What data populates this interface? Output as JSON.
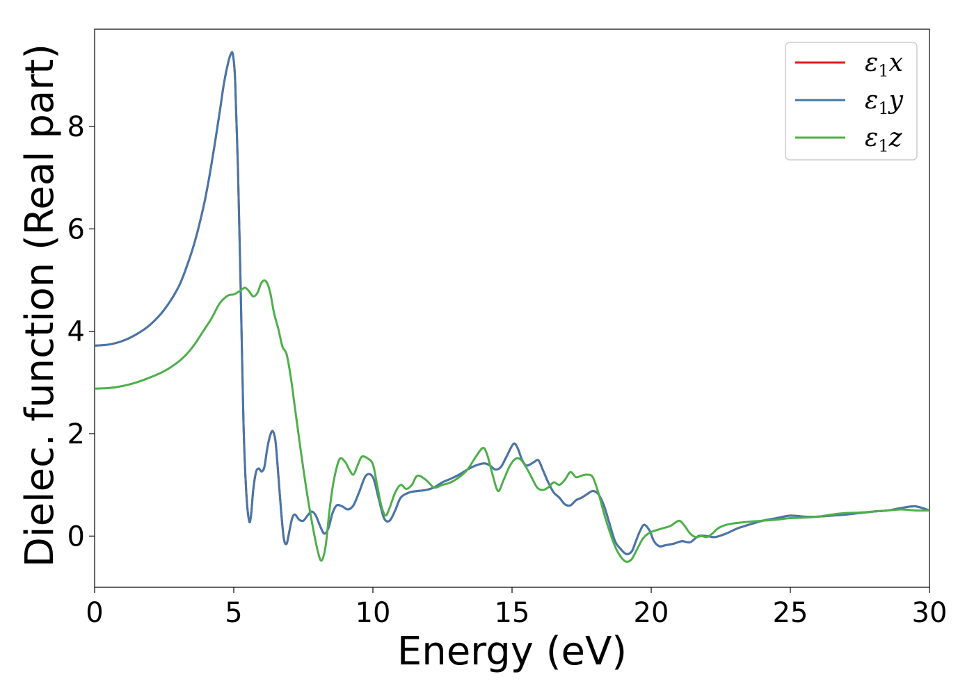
{
  "chart_data": {
    "type": "line",
    "xlabel": "Energy (eV)",
    "ylabel": "Dielec. function (Real part)",
    "xlim": [
      0,
      30
    ],
    "ylim": [
      -1.0,
      9.9
    ],
    "xticks": [
      "0",
      "5",
      "10",
      "15",
      "20",
      "25",
      "30"
    ],
    "xtick_values": [
      0,
      5,
      10,
      15,
      20,
      25,
      30
    ],
    "yticks": [
      "0",
      "2",
      "4",
      "6",
      "8"
    ],
    "ytick_values": [
      0,
      2,
      4,
      6,
      8
    ],
    "grid": false,
    "legend_position": "top-right",
    "series": [
      {
        "name": "ε1x",
        "legend_symbol": "ε",
        "legend_sub": "1",
        "legend_axis": "x",
        "color": "#e41a1c",
        "x": [
          0,
          0.5,
          1,
          1.5,
          2,
          2.5,
          3,
          3.3,
          3.6,
          3.9,
          4.1,
          4.3,
          4.5,
          4.65,
          4.8,
          4.9,
          4.97,
          5.05,
          5.15,
          5.25,
          5.35,
          5.45,
          5.55,
          5.62,
          5.7,
          5.8,
          5.9,
          6.0,
          6.1,
          6.2,
          6.3,
          6.4,
          6.5,
          6.6,
          6.7,
          6.8,
          6.9,
          7.0,
          7.1,
          7.2,
          7.35,
          7.5,
          7.65,
          7.8,
          7.95,
          8.1,
          8.25,
          8.4,
          8.55,
          8.7,
          8.9,
          9.1,
          9.3,
          9.5,
          9.75,
          10.0,
          10.2,
          10.4,
          10.6,
          10.8,
          11.0,
          11.3,
          11.6,
          11.9,
          12.2,
          12.5,
          12.8,
          13.1,
          13.4,
          13.7,
          14.0,
          14.2,
          14.4,
          14.6,
          14.8,
          15.05,
          15.2,
          15.35,
          15.5,
          15.65,
          15.8,
          15.95,
          16.1,
          16.3,
          16.5,
          16.7,
          16.9,
          17.1,
          17.3,
          17.5,
          17.7,
          17.9,
          18.1,
          18.3,
          18.5,
          18.7,
          18.9,
          19.1,
          19.3,
          19.45,
          19.6,
          19.75,
          19.95,
          20.1,
          20.3,
          20.5,
          20.8,
          21.1,
          21.4,
          21.7,
          22.0,
          22.3,
          22.7,
          23.1,
          23.5,
          24.0,
          24.5,
          25.0,
          25.5,
          26.0,
          26.5,
          27.0,
          27.5,
          28.0,
          28.5,
          29.0,
          29.5,
          30.0
        ],
        "y": [
          3.72,
          3.74,
          3.81,
          3.94,
          4.13,
          4.42,
          4.85,
          5.25,
          5.75,
          6.4,
          6.95,
          7.6,
          8.3,
          8.85,
          9.25,
          9.42,
          9.4,
          8.9,
          7.2,
          4.8,
          2.2,
          0.85,
          0.3,
          0.4,
          0.9,
          1.25,
          1.32,
          1.26,
          1.35,
          1.7,
          1.95,
          2.05,
          1.85,
          1.2,
          0.5,
          -0.05,
          -0.15,
          0.1,
          0.35,
          0.42,
          0.32,
          0.3,
          0.4,
          0.48,
          0.4,
          0.2,
          0.05,
          0.15,
          0.45,
          0.6,
          0.58,
          0.52,
          0.6,
          0.85,
          1.18,
          1.15,
          0.75,
          0.35,
          0.3,
          0.5,
          0.75,
          0.85,
          0.88,
          0.9,
          0.95,
          1.05,
          1.12,
          1.2,
          1.3,
          1.38,
          1.42,
          1.38,
          1.3,
          1.35,
          1.55,
          1.8,
          1.72,
          1.5,
          1.38,
          1.4,
          1.45,
          1.48,
          1.3,
          1.05,
          0.85,
          0.75,
          0.62,
          0.6,
          0.7,
          0.75,
          0.82,
          0.88,
          0.82,
          0.6,
          0.25,
          -0.1,
          -0.25,
          -0.35,
          -0.3,
          -0.1,
          0.1,
          0.22,
          0.1,
          -0.1,
          -0.2,
          -0.18,
          -0.15,
          -0.1,
          -0.12,
          0.0,
          0.0,
          -0.02,
          0.05,
          0.15,
          0.22,
          0.3,
          0.35,
          0.4,
          0.38,
          0.38,
          0.4,
          0.42,
          0.45,
          0.48,
          0.5,
          0.55,
          0.58,
          0.5
        ]
      },
      {
        "name": "ε1y",
        "legend_symbol": "ε",
        "legend_sub": "1",
        "legend_axis": "y",
        "color": "#4477aa",
        "x": [
          0,
          0.5,
          1,
          1.5,
          2,
          2.5,
          3,
          3.3,
          3.6,
          3.9,
          4.1,
          4.3,
          4.5,
          4.65,
          4.8,
          4.9,
          4.97,
          5.05,
          5.15,
          5.25,
          5.35,
          5.45,
          5.55,
          5.62,
          5.7,
          5.8,
          5.9,
          6.0,
          6.1,
          6.2,
          6.3,
          6.4,
          6.5,
          6.6,
          6.7,
          6.8,
          6.9,
          7.0,
          7.1,
          7.2,
          7.35,
          7.5,
          7.65,
          7.8,
          7.95,
          8.1,
          8.25,
          8.4,
          8.55,
          8.7,
          8.9,
          9.1,
          9.3,
          9.5,
          9.75,
          10.0,
          10.2,
          10.4,
          10.6,
          10.8,
          11.0,
          11.3,
          11.6,
          11.9,
          12.2,
          12.5,
          12.8,
          13.1,
          13.4,
          13.7,
          14.0,
          14.2,
          14.4,
          14.6,
          14.8,
          15.05,
          15.2,
          15.35,
          15.5,
          15.65,
          15.8,
          15.95,
          16.1,
          16.3,
          16.5,
          16.7,
          16.9,
          17.1,
          17.3,
          17.5,
          17.7,
          17.9,
          18.1,
          18.3,
          18.5,
          18.7,
          18.9,
          19.1,
          19.3,
          19.45,
          19.6,
          19.75,
          19.95,
          20.1,
          20.3,
          20.5,
          20.8,
          21.1,
          21.4,
          21.7,
          22.0,
          22.3,
          22.7,
          23.1,
          23.5,
          24.0,
          24.5,
          25.0,
          25.5,
          26.0,
          26.5,
          27.0,
          27.5,
          28.0,
          28.5,
          29.0,
          29.5,
          30.0
        ],
        "y": [
          3.72,
          3.74,
          3.81,
          3.94,
          4.13,
          4.42,
          4.85,
          5.25,
          5.75,
          6.4,
          6.95,
          7.6,
          8.3,
          8.85,
          9.25,
          9.42,
          9.4,
          8.9,
          7.2,
          4.8,
          2.2,
          0.85,
          0.3,
          0.4,
          0.9,
          1.25,
          1.32,
          1.26,
          1.35,
          1.7,
          1.95,
          2.05,
          1.85,
          1.2,
          0.5,
          -0.05,
          -0.15,
          0.1,
          0.35,
          0.42,
          0.32,
          0.3,
          0.4,
          0.48,
          0.4,
          0.2,
          0.05,
          0.15,
          0.45,
          0.6,
          0.58,
          0.52,
          0.6,
          0.85,
          1.18,
          1.15,
          0.75,
          0.35,
          0.3,
          0.5,
          0.75,
          0.85,
          0.88,
          0.9,
          0.95,
          1.05,
          1.12,
          1.2,
          1.3,
          1.38,
          1.42,
          1.38,
          1.3,
          1.35,
          1.55,
          1.8,
          1.72,
          1.5,
          1.38,
          1.4,
          1.45,
          1.48,
          1.3,
          1.05,
          0.85,
          0.75,
          0.62,
          0.6,
          0.7,
          0.75,
          0.82,
          0.88,
          0.82,
          0.6,
          0.25,
          -0.1,
          -0.25,
          -0.35,
          -0.3,
          -0.1,
          0.1,
          0.22,
          0.1,
          -0.1,
          -0.2,
          -0.18,
          -0.15,
          -0.1,
          -0.12,
          0.0,
          0.0,
          -0.02,
          0.05,
          0.15,
          0.22,
          0.3,
          0.35,
          0.4,
          0.38,
          0.38,
          0.4,
          0.42,
          0.45,
          0.48,
          0.5,
          0.55,
          0.58,
          0.5
        ]
      },
      {
        "name": "ε1z",
        "legend_symbol": "ε",
        "legend_sub": "1",
        "legend_axis": "z",
        "color": "#4daf4a",
        "x": [
          0,
          0.5,
          1,
          1.5,
          2,
          2.5,
          3,
          3.3,
          3.6,
          3.9,
          4.2,
          4.5,
          4.8,
          5.0,
          5.2,
          5.4,
          5.55,
          5.7,
          5.85,
          6.0,
          6.15,
          6.3,
          6.45,
          6.6,
          6.75,
          6.9,
          7.05,
          7.2,
          7.4,
          7.6,
          7.8,
          8.0,
          8.15,
          8.3,
          8.45,
          8.6,
          8.8,
          9.0,
          9.15,
          9.3,
          9.45,
          9.6,
          9.8,
          10.0,
          10.15,
          10.3,
          10.45,
          10.6,
          10.8,
          11.0,
          11.2,
          11.4,
          11.6,
          11.9,
          12.2,
          12.5,
          12.8,
          13.1,
          13.4,
          13.7,
          13.95,
          14.1,
          14.3,
          14.5,
          14.7,
          14.9,
          15.1,
          15.3,
          15.5,
          15.7,
          15.9,
          16.1,
          16.3,
          16.5,
          16.7,
          16.9,
          17.1,
          17.3,
          17.5,
          17.7,
          17.9,
          18.1,
          18.3,
          18.5,
          18.7,
          18.9,
          19.1,
          19.3,
          19.5,
          19.7,
          19.9,
          20.1,
          20.4,
          20.7,
          21.0,
          21.2,
          21.4,
          21.6,
          21.8,
          22.0,
          22.2,
          22.4,
          22.7,
          23.0,
          23.5,
          24.0,
          24.5,
          25.0,
          25.5,
          26.0,
          26.5,
          27.0,
          27.5,
          28.0,
          28.5,
          29.0,
          29.5,
          30.0
        ],
        "y": [
          2.88,
          2.89,
          2.93,
          3.0,
          3.1,
          3.22,
          3.4,
          3.55,
          3.75,
          4.0,
          4.25,
          4.55,
          4.7,
          4.72,
          4.78,
          4.85,
          4.78,
          4.68,
          4.75,
          4.95,
          4.98,
          4.78,
          4.35,
          4.05,
          3.7,
          3.55,
          3.1,
          2.5,
          1.7,
          0.95,
          0.3,
          -0.25,
          -0.48,
          -0.2,
          0.55,
          1.1,
          1.5,
          1.45,
          1.3,
          1.2,
          1.38,
          1.55,
          1.52,
          1.4,
          1.0,
          0.6,
          0.4,
          0.55,
          0.85,
          1.0,
          0.92,
          1.0,
          1.18,
          1.1,
          0.95,
          1.0,
          1.05,
          1.15,
          1.3,
          1.55,
          1.72,
          1.6,
          1.2,
          0.88,
          1.1,
          1.35,
          1.5,
          1.5,
          1.35,
          1.15,
          0.95,
          0.9,
          0.95,
          1.05,
          1.0,
          1.1,
          1.25,
          1.15,
          1.18,
          1.2,
          1.15,
          0.85,
          0.45,
          0.1,
          -0.2,
          -0.4,
          -0.5,
          -0.45,
          -0.25,
          -0.05,
          0.05,
          0.1,
          0.15,
          0.2,
          0.3,
          0.2,
          0.05,
          -0.02,
          0.0,
          -0.02,
          0.05,
          0.15,
          0.22,
          0.25,
          0.28,
          0.3,
          0.32,
          0.35,
          0.36,
          0.38,
          0.42,
          0.45,
          0.46,
          0.48,
          0.5,
          0.52,
          0.5,
          0.5
        ]
      }
    ]
  }
}
